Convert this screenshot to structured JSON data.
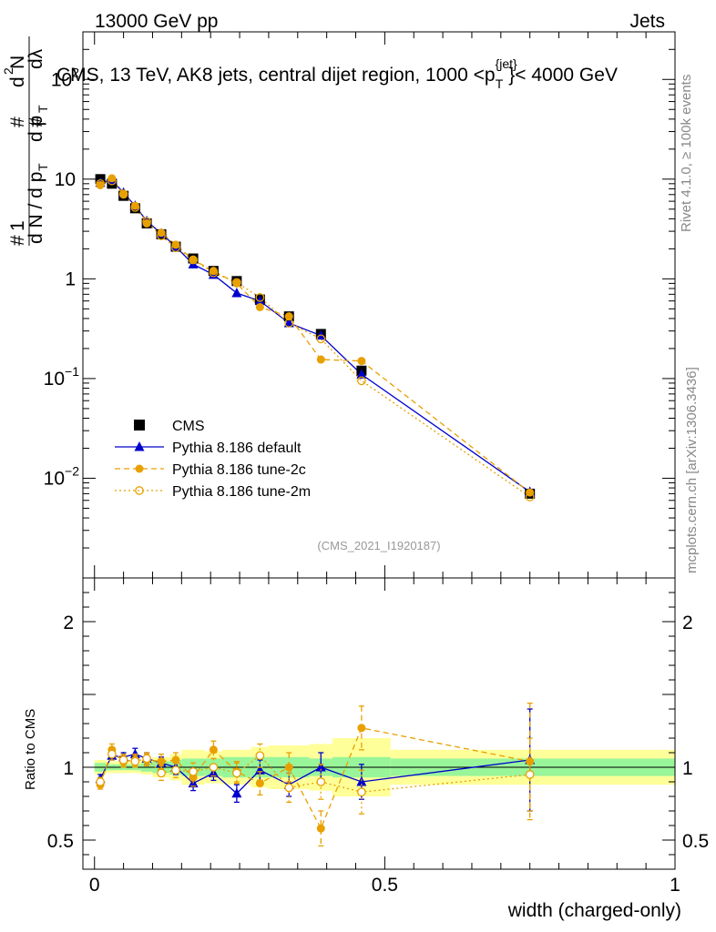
{
  "header": {
    "left": "13000 GeV pp",
    "right": "Jets"
  },
  "side_labels": {
    "version": "Rivet 4.1.0, ≥ 100k events",
    "site": "mcplots.cern.ch [arXiv:1306.3436]"
  },
  "analysis_tag": "(CMS_2021_I1920187)",
  "chart_data": [
    {
      "type": "scatter",
      "panel": "main",
      "title_parts": {
        "prefix": "CMS, 13 TeV, AK8 jets, central dijet region, 1000 <p",
        "sup": "{jet}",
        "sub": "T",
        "suffix": "}< 4000 GeV"
      },
      "ylabel": "1/N dN/dp_T dN/dλ",
      "yscale": "log",
      "ylim": [
        0.001,
        300
      ],
      "xlim": [
        -0.02,
        1.0
      ],
      "ytick_labels": [
        {
          "value": 0.01,
          "base": "10",
          "exp": "−2"
        },
        {
          "value": 0.1,
          "base": "10",
          "exp": "−1"
        },
        {
          "value": 1,
          "base": "1",
          "exp": ""
        },
        {
          "value": 10,
          "base": "10",
          "exp": ""
        },
        {
          "value": 100,
          "base": "10",
          "exp": "2"
        }
      ],
      "series": [
        {
          "name": "CMS",
          "style": "data",
          "color": "#000000",
          "x": [
            0.01,
            0.03,
            0.05,
            0.07,
            0.09,
            0.115,
            0.14,
            0.17,
            0.205,
            0.245,
            0.285,
            0.335,
            0.39,
            0.46,
            0.75
          ],
          "y": [
            10,
            9,
            6.8,
            5.1,
            3.6,
            2.8,
            2.1,
            1.6,
            1.2,
            0.95,
            0.62,
            0.42,
            0.28,
            0.12,
            0.007
          ]
        },
        {
          "name": "Pythia 8.186 default",
          "style": "solid",
          "color": "#0000cc",
          "x": [
            0.01,
            0.03,
            0.05,
            0.07,
            0.09,
            0.115,
            0.14,
            0.17,
            0.205,
            0.245,
            0.285,
            0.335,
            0.39,
            0.46,
            0.75
          ],
          "y": [
            9.2,
            9.8,
            7.3,
            5.4,
            3.8,
            2.85,
            2.1,
            1.4,
            1.1,
            0.72,
            0.6,
            0.36,
            0.27,
            0.11,
            0.0073
          ]
        },
        {
          "name": "Pythia 8.186 tune-2c",
          "style": "dashed",
          "color": "#e8a000",
          "x": [
            0.01,
            0.03,
            0.05,
            0.07,
            0.09,
            0.115,
            0.14,
            0.17,
            0.205,
            0.245,
            0.285,
            0.335,
            0.39,
            0.46,
            0.75
          ],
          "y": [
            8.7,
            10.2,
            7.0,
            5.4,
            3.6,
            2.9,
            2.2,
            1.55,
            1.2,
            0.9,
            0.52,
            0.42,
            0.155,
            0.15,
            0.0072
          ]
        },
        {
          "name": "Pythia 8.186 tune-2m",
          "style": "dotted",
          "color": "#e8a000",
          "x": [
            0.01,
            0.03,
            0.05,
            0.07,
            0.09,
            0.115,
            0.14,
            0.17,
            0.205,
            0.245,
            0.285,
            0.335,
            0.39,
            0.46,
            0.75
          ],
          "y": [
            9.0,
            9.6,
            7.1,
            5.2,
            3.75,
            2.7,
            2.05,
            1.55,
            1.15,
            0.92,
            0.65,
            0.36,
            0.25,
            0.095,
            0.0065
          ]
        }
      ]
    },
    {
      "type": "scatter",
      "panel": "ratio",
      "ylabel": "Ratio to CMS",
      "xlabel": "width (charged-only)",
      "xlim": [
        -0.02,
        1.0
      ],
      "ylim": [
        0.3,
        2.3
      ],
      "xticks": [
        0,
        0.5,
        1
      ],
      "xtick_labels": [
        "0",
        "0.5",
        "1"
      ],
      "yticks": [
        0.5,
        1,
        2
      ],
      "ytick_labels": [
        "0.5",
        "1",
        "2"
      ],
      "band_edges": [
        0.0,
        0.02,
        0.04,
        0.06,
        0.08,
        0.1,
        0.13,
        0.15,
        0.19,
        0.22,
        0.27,
        0.3,
        0.37,
        0.41,
        0.51,
        1.0
      ],
      "band_yellow": [
        0.05,
        0.04,
        0.04,
        0.04,
        0.05,
        0.07,
        0.09,
        0.12,
        0.11,
        0.12,
        0.14,
        0.15,
        0.16,
        0.2,
        0.12
      ],
      "band_green": [
        0.03,
        0.02,
        0.02,
        0.02,
        0.03,
        0.04,
        0.05,
        0.06,
        0.06,
        0.07,
        0.07,
        0.07,
        0.06,
        0.07,
        0.06
      ],
      "series": [
        {
          "name": "Pythia 8.186 default",
          "style": "solid",
          "color": "#0000cc",
          "x": [
            0.01,
            0.03,
            0.05,
            0.07,
            0.09,
            0.115,
            0.14,
            0.17,
            0.205,
            0.245,
            0.285,
            0.335,
            0.39,
            0.46,
            0.75
          ],
          "y": [
            0.92,
            1.08,
            1.07,
            1.09,
            1.06,
            1.03,
            1.0,
            0.89,
            0.96,
            0.82,
            0.98,
            0.88,
            1.0,
            0.9,
            1.05
          ],
          "err": [
            0.03,
            0.03,
            0.03,
            0.04,
            0.04,
            0.04,
            0.05,
            0.05,
            0.05,
            0.06,
            0.07,
            0.08,
            0.1,
            0.12,
            0.35
          ]
        },
        {
          "name": "Pythia 8.186 tune-2c",
          "style": "dashed",
          "color": "#e8a000",
          "x": [
            0.01,
            0.03,
            0.05,
            0.07,
            0.09,
            0.115,
            0.14,
            0.17,
            0.205,
            0.245,
            0.285,
            0.335,
            0.39,
            0.46,
            0.75
          ],
          "y": [
            0.88,
            1.12,
            1.04,
            1.05,
            1.05,
            1.04,
            1.05,
            0.93,
            1.12,
            0.97,
            0.89,
            1.0,
            0.58,
            1.27,
            1.04
          ],
          "err": [
            0.03,
            0.04,
            0.04,
            0.04,
            0.04,
            0.05,
            0.05,
            0.06,
            0.06,
            0.07,
            0.08,
            0.1,
            0.12,
            0.15,
            0.4
          ]
        },
        {
          "name": "Pythia 8.186 tune-2m",
          "style": "dotted",
          "color": "#e8a000",
          "x": [
            0.01,
            0.03,
            0.05,
            0.07,
            0.09,
            0.115,
            0.14,
            0.17,
            0.205,
            0.245,
            0.285,
            0.335,
            0.39,
            0.46,
            0.75
          ],
          "y": [
            0.9,
            1.09,
            1.05,
            1.04,
            1.06,
            0.96,
            0.98,
            0.97,
            1.0,
            0.96,
            1.08,
            0.86,
            0.9,
            0.83,
            0.95
          ],
          "err": [
            0.03,
            0.04,
            0.04,
            0.04,
            0.04,
            0.05,
            0.05,
            0.06,
            0.06,
            0.07,
            0.08,
            0.1,
            0.12,
            0.15,
            0.25
          ]
        }
      ]
    }
  ]
}
